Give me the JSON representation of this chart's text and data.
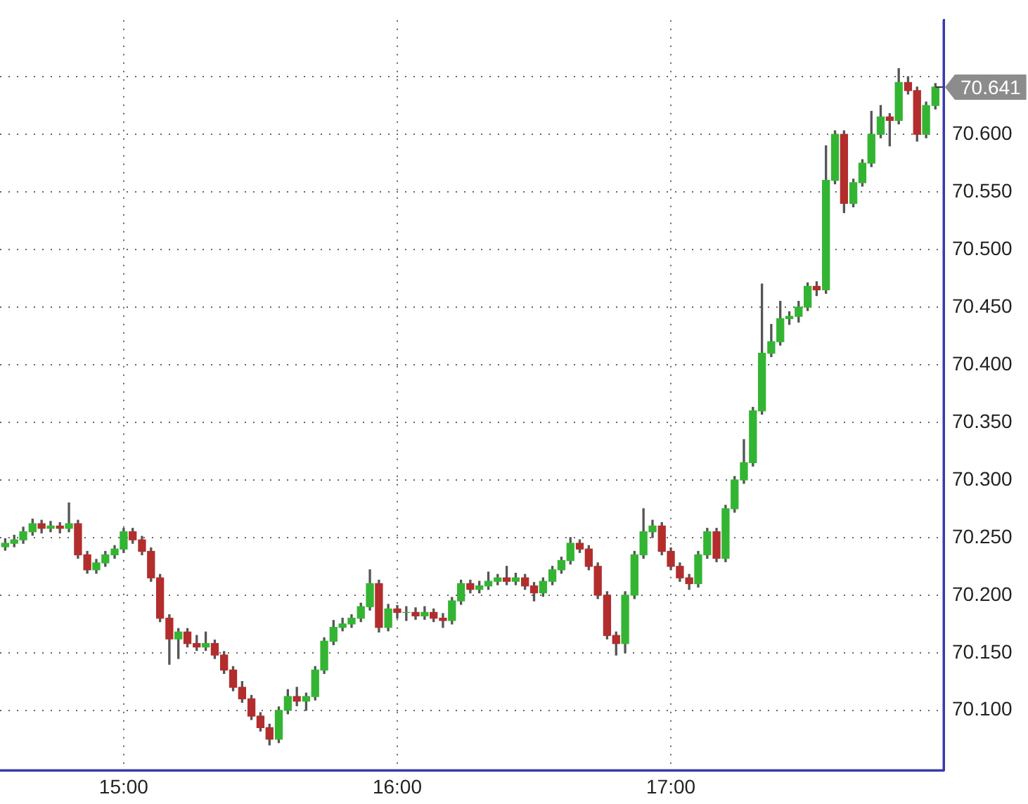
{
  "chart_data": {
    "type": "candlestick",
    "x": [
      14.567,
      14.6,
      14.633,
      14.667,
      14.7,
      14.733,
      14.767,
      14.8,
      14.833,
      14.867,
      14.9,
      14.933,
      14.967,
      15,
      15.033,
      15.067,
      15.1,
      15.133,
      15.167,
      15.2,
      15.233,
      15.267,
      15.3,
      15.333,
      15.367,
      15.4,
      15.433,
      15.467,
      15.5,
      15.533,
      15.567,
      15.6,
      15.633,
      15.667,
      15.7,
      15.733,
      15.767,
      15.8,
      15.833,
      15.867,
      15.9,
      15.933,
      15.967,
      16,
      16.033,
      16.067,
      16.1,
      16.133,
      16.167,
      16.2,
      16.233,
      16.267,
      16.3,
      16.333,
      16.367,
      16.4,
      16.433,
      16.467,
      16.5,
      16.533,
      16.567,
      16.6,
      16.633,
      16.667,
      16.7,
      16.733,
      16.767,
      16.8,
      16.833,
      16.867,
      16.9,
      16.933,
      16.967,
      17,
      17.033,
      17.067,
      17.1,
      17.133,
      17.167,
      17.2,
      17.233,
      17.267,
      17.3,
      17.333,
      17.367,
      17.4,
      17.433,
      17.467,
      17.5,
      17.533,
      17.567,
      17.6,
      17.633,
      17.667,
      17.7,
      17.733,
      17.767,
      17.8,
      17.833,
      17.867,
      17.9,
      17.933,
      17.967
    ],
    "ohlc": [
      [
        70.242,
        70.249,
        70.239,
        70.245
      ],
      [
        70.245,
        70.252,
        70.242,
        70.248
      ],
      [
        70.248,
        70.259,
        70.245,
        70.255
      ],
      [
        70.255,
        70.266,
        70.252,
        70.262
      ],
      [
        70.262,
        70.265,
        70.254,
        70.258
      ],
      [
        70.258,
        70.264,
        70.255,
        70.26
      ],
      [
        70.26,
        70.263,
        70.254,
        70.258
      ],
      [
        70.258,
        70.28,
        70.255,
        70.262
      ],
      [
        70.262,
        70.265,
        70.232,
        70.235
      ],
      [
        70.235,
        70.238,
        70.219,
        70.222
      ],
      [
        70.222,
        70.231,
        70.219,
        70.228
      ],
      [
        70.228,
        70.238,
        70.225,
        70.235
      ],
      [
        70.235,
        70.243,
        70.232,
        70.24
      ],
      [
        70.24,
        70.258,
        70.237,
        70.255
      ],
      [
        70.255,
        70.258,
        70.245,
        70.248
      ],
      [
        70.248,
        70.251,
        70.235,
        70.238
      ],
      [
        70.238,
        70.241,
        70.212,
        70.215
      ],
      [
        70.215,
        70.218,
        70.177,
        70.18
      ],
      [
        70.18,
        70.183,
        70.14,
        70.162
      ],
      [
        70.162,
        70.171,
        70.145,
        70.168
      ],
      [
        70.168,
        70.171,
        70.155,
        70.158
      ],
      [
        70.158,
        70.165,
        70.152,
        70.155
      ],
      [
        70.155,
        70.168,
        70.152,
        70.158
      ],
      [
        70.158,
        70.161,
        70.145,
        70.148
      ],
      [
        70.148,
        70.151,
        70.132,
        70.135
      ],
      [
        70.135,
        70.138,
        70.117,
        70.12
      ],
      [
        70.12,
        70.125,
        70.107,
        70.11
      ],
      [
        70.11,
        70.113,
        70.092,
        70.095
      ],
      [
        70.095,
        70.098,
        70.082,
        70.085
      ],
      [
        70.085,
        70.088,
        70.07,
        70.075
      ],
      [
        70.075,
        70.103,
        70.072,
        70.1
      ],
      [
        70.1,
        70.118,
        70.097,
        70.112
      ],
      [
        70.112,
        70.12,
        70.104,
        70.108
      ],
      [
        70.108,
        70.115,
        70.1,
        70.112
      ],
      [
        70.112,
        70.138,
        70.109,
        70.135
      ],
      [
        70.135,
        70.163,
        70.132,
        70.16
      ],
      [
        70.16,
        70.178,
        70.157,
        70.172
      ],
      [
        70.172,
        70.18,
        70.169,
        70.175
      ],
      [
        70.175,
        70.183,
        70.172,
        70.18
      ],
      [
        70.18,
        70.193,
        70.177,
        70.19
      ],
      [
        70.19,
        70.222,
        70.187,
        70.21
      ],
      [
        70.21,
        70.213,
        70.168,
        70.172
      ],
      [
        70.172,
        70.192,
        70.169,
        70.188
      ],
      [
        70.188,
        70.191,
        70.18,
        70.185
      ],
      [
        70.185,
        70.19,
        70.178,
        70.185
      ],
      [
        70.185,
        70.189,
        70.179,
        70.182
      ],
      [
        70.182,
        70.19,
        70.179,
        70.185
      ],
      [
        70.185,
        70.188,
        70.177,
        70.18
      ],
      [
        70.18,
        70.184,
        70.172,
        70.178
      ],
      [
        70.178,
        70.198,
        70.175,
        70.195
      ],
      [
        70.195,
        70.213,
        70.192,
        70.21
      ],
      [
        70.21,
        70.213,
        70.202,
        70.205
      ],
      [
        70.205,
        70.212,
        70.202,
        70.208
      ],
      [
        70.208,
        70.22,
        70.205,
        70.212
      ],
      [
        70.212,
        70.218,
        70.209,
        70.215
      ],
      [
        70.215,
        70.225,
        70.209,
        70.212
      ],
      [
        70.212,
        70.219,
        70.209,
        70.215
      ],
      [
        70.215,
        70.218,
        70.205,
        70.208
      ],
      [
        70.208,
        70.211,
        70.195,
        70.202
      ],
      [
        70.202,
        70.215,
        70.199,
        70.212
      ],
      [
        70.212,
        70.225,
        70.209,
        70.222
      ],
      [
        70.222,
        70.233,
        70.219,
        70.23
      ],
      [
        70.23,
        70.25,
        70.227,
        70.245
      ],
      [
        70.245,
        70.248,
        70.237,
        70.24
      ],
      [
        70.24,
        70.243,
        70.222,
        70.225
      ],
      [
        70.225,
        70.228,
        70.197,
        70.2
      ],
      [
        70.2,
        70.203,
        70.162,
        70.165
      ],
      [
        70.165,
        70.168,
        70.148,
        70.158
      ],
      [
        70.158,
        70.203,
        70.15,
        70.2
      ],
      [
        70.2,
        70.238,
        70.197,
        70.235
      ],
      [
        70.235,
        70.275,
        70.232,
        70.255
      ],
      [
        70.255,
        70.265,
        70.25,
        70.26
      ],
      [
        70.26,
        70.263,
        70.235,
        70.238
      ],
      [
        70.238,
        70.241,
        70.222,
        70.225
      ],
      [
        70.225,
        70.228,
        70.212,
        70.215
      ],
      [
        70.215,
        70.218,
        70.205,
        70.21
      ],
      [
        70.21,
        70.238,
        70.207,
        70.235
      ],
      [
        70.235,
        70.258,
        70.232,
        70.255
      ],
      [
        70.255,
        70.258,
        70.229,
        70.232
      ],
      [
        70.232,
        70.278,
        70.229,
        70.275
      ],
      [
        70.275,
        70.303,
        70.272,
        70.3
      ],
      [
        70.3,
        70.335,
        70.297,
        70.315
      ],
      [
        70.315,
        70.363,
        70.312,
        70.36
      ],
      [
        70.36,
        70.47,
        70.357,
        70.41
      ],
      [
        70.41,
        70.435,
        70.407,
        70.42
      ],
      [
        70.42,
        70.455,
        70.417,
        70.44
      ],
      [
        70.44,
        70.446,
        70.435,
        70.442
      ],
      [
        70.442,
        70.455,
        70.437,
        70.45
      ],
      [
        70.45,
        70.471,
        70.447,
        70.468
      ],
      [
        70.468,
        70.472,
        70.46,
        70.465
      ],
      [
        70.465,
        70.59,
        70.462,
        70.56
      ],
      [
        70.56,
        70.603,
        70.557,
        70.6
      ],
      [
        70.6,
        70.603,
        70.532,
        70.54
      ],
      [
        70.54,
        70.561,
        70.537,
        70.558
      ],
      [
        70.558,
        70.578,
        70.555,
        70.575
      ],
      [
        70.575,
        70.62,
        70.572,
        70.6
      ],
      [
        70.6,
        70.625,
        70.597,
        70.615
      ],
      [
        70.615,
        70.618,
        70.59,
        70.612
      ],
      [
        70.612,
        70.657,
        70.609,
        70.645
      ],
      [
        70.645,
        70.65,
        70.635,
        70.638
      ],
      [
        70.638,
        70.641,
        70.594,
        70.6
      ],
      [
        70.6,
        70.628,
        70.597,
        70.625
      ],
      [
        70.625,
        70.644,
        70.622,
        70.641
      ]
    ],
    "xlim": [
      14.548,
      17.997
    ],
    "xticks": [
      {
        "value": 15,
        "label": "15:00"
      },
      {
        "value": 16,
        "label": "16:00"
      },
      {
        "value": 17,
        "label": "17:00"
      }
    ],
    "ylim": [
      70.048,
      70.699
    ],
    "yticks": [
      {
        "value": 70.1,
        "label": "70.100"
      },
      {
        "value": 70.15,
        "label": "70.150"
      },
      {
        "value": 70.2,
        "label": "70.200"
      },
      {
        "value": 70.25,
        "label": "70.250"
      },
      {
        "value": 70.3,
        "label": "70.300"
      },
      {
        "value": 70.35,
        "label": "70.350"
      },
      {
        "value": 70.4,
        "label": "70.400"
      },
      {
        "value": 70.45,
        "label": "70.450"
      },
      {
        "value": 70.5,
        "label": "70.500"
      },
      {
        "value": 70.55,
        "label": "70.550"
      },
      {
        "value": 70.6,
        "label": "70.600"
      },
      {
        "value": 70.65,
        "label": null
      }
    ],
    "annotations": [
      {
        "text": "70.641",
        "x": 17.967,
        "y": 70.641
      }
    ],
    "grid": true
  }
}
